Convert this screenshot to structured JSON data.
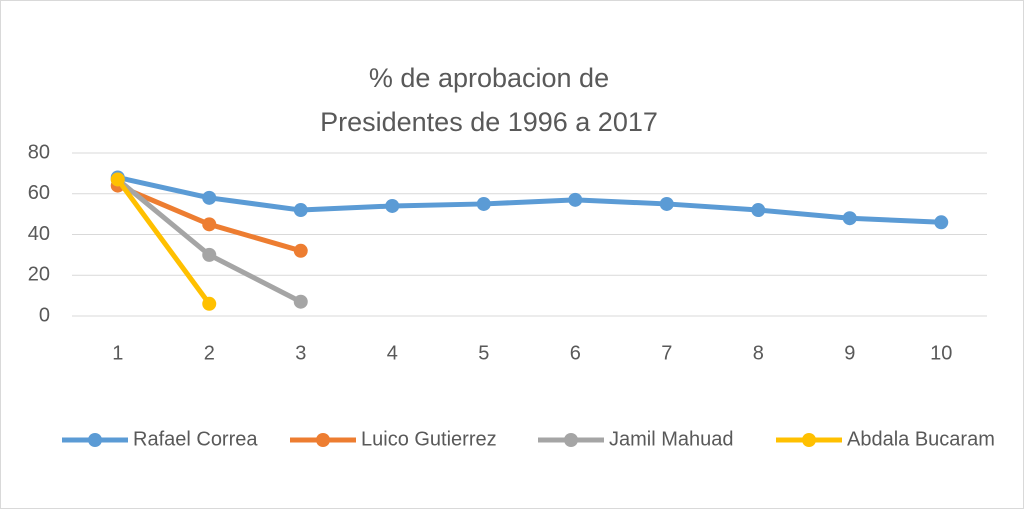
{
  "chart_data": {
    "type": "line",
    "title": [
      "% de aprobacion de",
      "Presidentes de 1996 a 2017"
    ],
    "categories": [
      1,
      2,
      3,
      4,
      5,
      6,
      7,
      8,
      9,
      10
    ],
    "series": [
      {
        "name": "Rafael Correa",
        "color": "#5b9bd5",
        "values": [
          68,
          58,
          52,
          54,
          55,
          57,
          55,
          52,
          48,
          46
        ]
      },
      {
        "name": "Luico Gutierrez",
        "color": "#ed7d31",
        "values": [
          64,
          45,
          32,
          null,
          null,
          null,
          null,
          null,
          null,
          null
        ]
      },
      {
        "name": "Jamil Mahuad",
        "color": "#a5a5a5",
        "values": [
          67,
          30,
          7,
          null,
          null,
          null,
          null,
          null,
          null,
          null
        ]
      },
      {
        "name": "Abdala Bucaram",
        "color": "#ffc000",
        "values": [
          67,
          6,
          null,
          null,
          null,
          null,
          null,
          null,
          null,
          null
        ]
      }
    ],
    "ylim": [
      0,
      80
    ],
    "yticks": [
      0,
      20,
      40,
      60,
      80
    ],
    "grid": true,
    "legend": "bottom"
  }
}
